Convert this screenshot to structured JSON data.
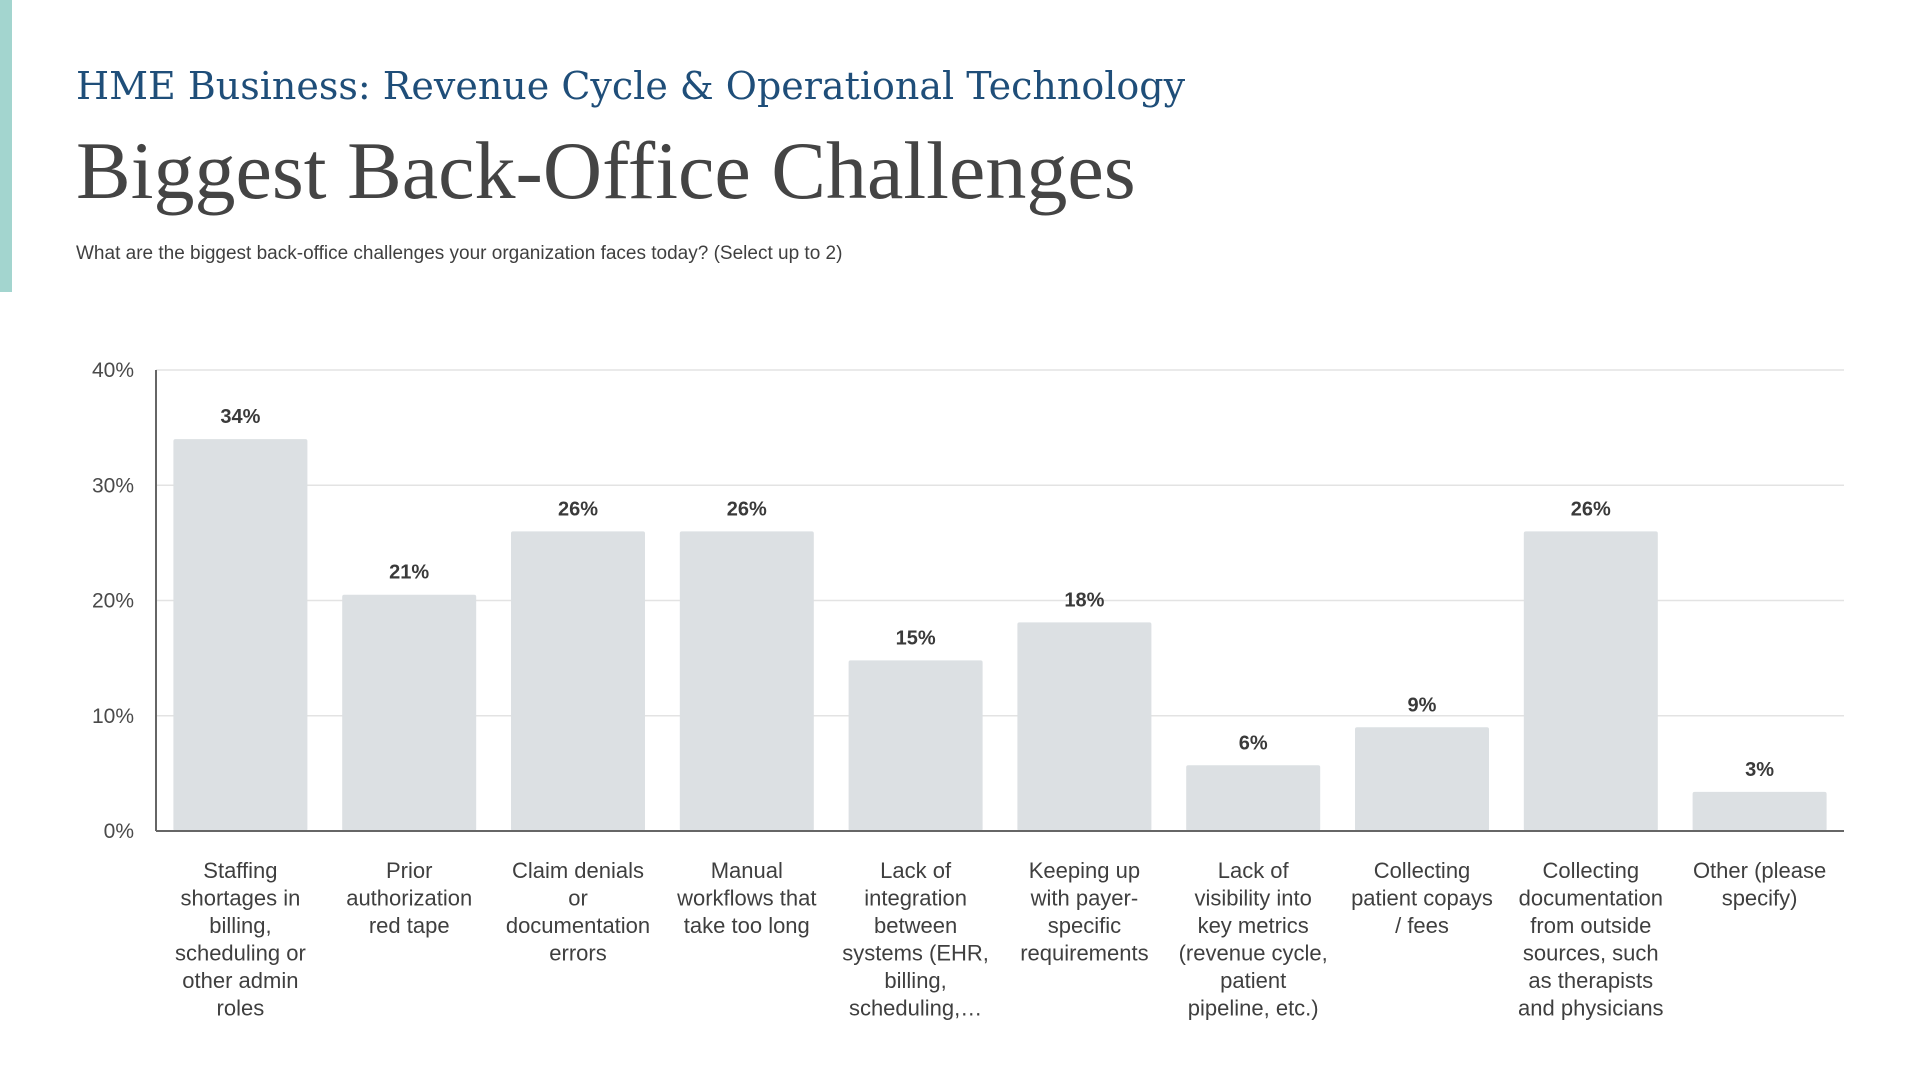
{
  "header": {
    "eyebrow": "HME Business: Revenue Cycle & Operational Technology",
    "title": "Biggest Back-Office Challenges",
    "question": "What are the biggest back-office challenges your organization faces today? (Select up to 2)"
  },
  "colors": {
    "accent": "#a3d5cf",
    "bar": "#dce0e3",
    "eyebrow": "#1f4e79",
    "title": "#444444",
    "grid": "#e3e3e3",
    "axis": "#666666"
  },
  "chart_data": {
    "type": "bar",
    "ylim": [
      0,
      40
    ],
    "yticks": [
      0,
      10,
      20,
      30,
      40
    ],
    "ytick_labels": [
      "0%",
      "10%",
      "20%",
      "30%",
      "40%"
    ],
    "grid": true,
    "legend": "none",
    "categories": [
      [
        "Staffing",
        "shortages in",
        "billing,",
        "scheduling or",
        "other admin",
        "roles"
      ],
      [
        "Prior",
        "authorization",
        "red tape"
      ],
      [
        "Claim denials",
        "or",
        "documentation",
        "errors"
      ],
      [
        "Manual",
        "workflows that",
        "take too long"
      ],
      [
        "Lack of",
        "integration",
        "between",
        "systems (EHR,",
        "billing,",
        "scheduling,…"
      ],
      [
        "Keeping up",
        "with payer-",
        "specific",
        "requirements"
      ],
      [
        "Lack of",
        "visibility into",
        "key metrics",
        "(revenue cycle,",
        "patient",
        "pipeline, etc.)"
      ],
      [
        "Collecting",
        "patient copays",
        "/ fees"
      ],
      [
        "Collecting",
        "documentation",
        "from outside",
        "sources, such",
        "as therapists",
        "and physicians"
      ],
      [
        "Other (please",
        "specify)"
      ]
    ],
    "values": [
      34,
      20.5,
      26,
      26,
      14.8,
      18.1,
      5.7,
      9,
      26,
      3.4
    ],
    "data_labels": [
      "34%",
      "21%",
      "26%",
      "26%",
      "15%",
      "18%",
      "6%",
      "9%",
      "26%",
      "3%"
    ]
  }
}
